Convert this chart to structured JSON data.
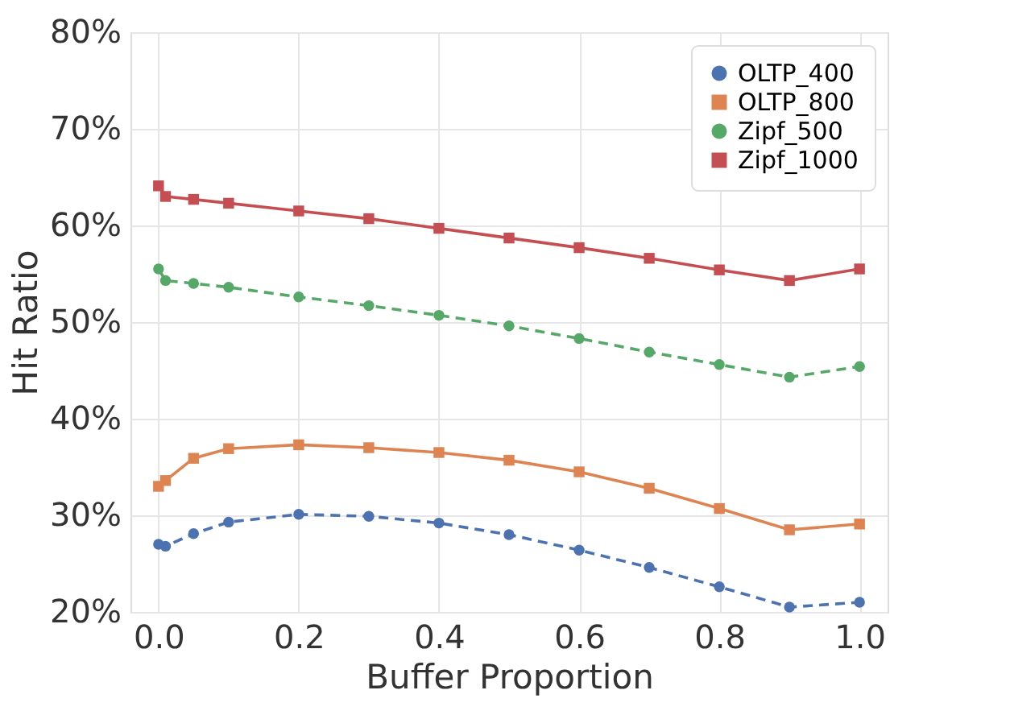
{
  "chart_data": {
    "type": "line",
    "xlabel": "Buffer Proportion",
    "ylabel": "Hit Ratio",
    "x": [
      0,
      0.01,
      0.05,
      0.1,
      0.2,
      0.3,
      0.4,
      0.5,
      0.6,
      0.7,
      0.8,
      0.9,
      1.0
    ],
    "xlim": [
      -0.04,
      1.04
    ],
    "xticks": [
      {
        "value": 0,
        "label": "0.0"
      },
      0.2,
      0.4,
      0.6,
      0.8,
      {
        "value": 1,
        "label": "1.0"
      }
    ],
    "ylim": [
      20,
      80
    ],
    "yticks": [
      {
        "value": 20,
        "label": "20%"
      },
      {
        "value": 30,
        "label": "30%"
      },
      {
        "value": 40,
        "label": "40%"
      },
      {
        "value": 50,
        "label": "50%"
      },
      {
        "value": 60,
        "label": "60%"
      },
      {
        "value": 70,
        "label": "70%"
      },
      {
        "value": 80,
        "label": "80%"
      }
    ],
    "grid": true,
    "legend": "top right",
    "series": [
      {
        "name": "OLTP_400",
        "color": "#4c72b0",
        "marker": "circle",
        "line_style": "dashed",
        "values": [
          27.0,
          26.8,
          28.1,
          29.3,
          30.1,
          29.9,
          29.2,
          28.0,
          26.4,
          24.6,
          22.6,
          20.5,
          21.0
        ]
      },
      {
        "name": "OLTP_800",
        "color": "#dd8452",
        "marker": "square",
        "line_style": "solid",
        "values": [
          33.0,
          33.6,
          35.9,
          36.9,
          37.3,
          37.0,
          36.5,
          35.7,
          34.5,
          32.8,
          30.7,
          28.5,
          29.1
        ]
      },
      {
        "name": "Zipf_500",
        "color": "#55a868",
        "marker": "circle",
        "line_style": "dashed",
        "values": [
          55.5,
          54.3,
          54.0,
          53.6,
          52.6,
          51.7,
          50.7,
          49.6,
          48.3,
          46.9,
          45.6,
          44.3,
          45.4
        ]
      },
      {
        "name": "Zipf_1000",
        "color": "#c44e52",
        "marker": "square",
        "line_style": "solid",
        "values": [
          64.1,
          63.0,
          62.7,
          62.3,
          61.5,
          60.7,
          59.7,
          58.7,
          57.7,
          56.6,
          55.4,
          54.3,
          55.5
        ]
      }
    ]
  }
}
